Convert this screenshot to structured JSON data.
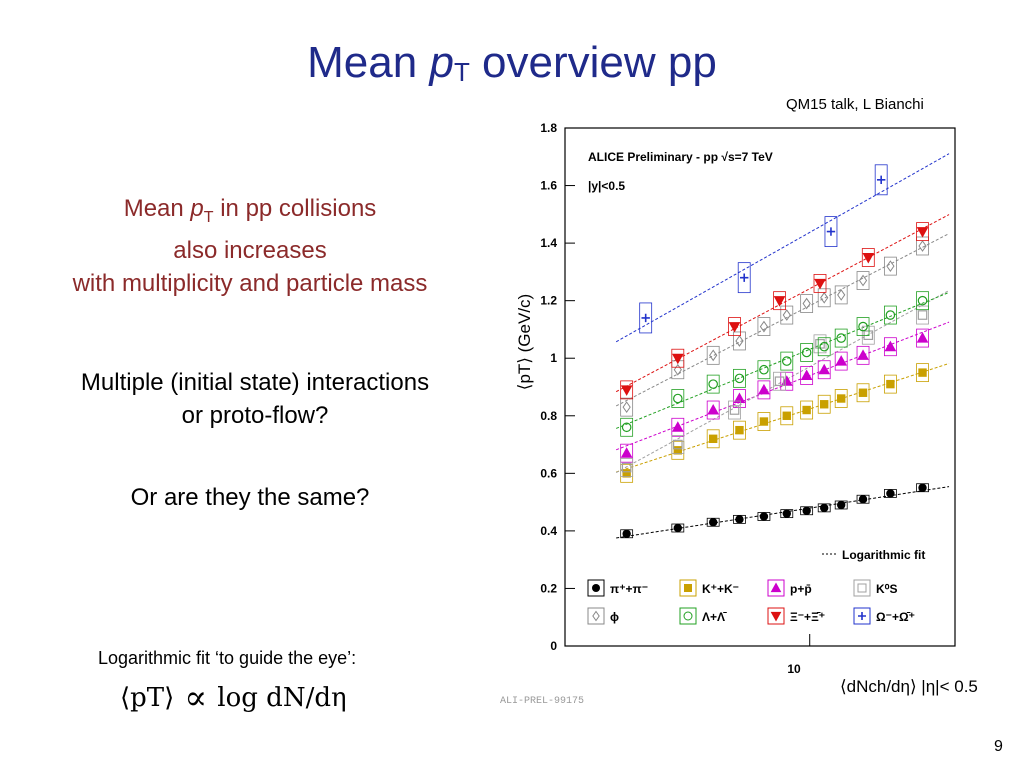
{
  "slide": {
    "title_pre": "Mean ",
    "title_p": "p",
    "title_sub": "T",
    "title_post": " overview pp",
    "citation": "QM15 talk, L Bianchi",
    "para1_line1_pre": "Mean ",
    "para1_p": "p",
    "para1_sub": "T",
    "para1_line1_post": " in pp collisions",
    "para1_line2": "also increases",
    "para1_line3": "with multiplicity and particle mass",
    "para2_line1": "Multiple (initial state) interactions",
    "para2_line2": "or proto-flow?",
    "para3": "Or are they the same?",
    "fit_note": "Logarithmic fit ‘to guide the eye’:",
    "formula_lhs": "⟨pT⟩",
    "formula_prop": "∝",
    "formula_rhs": "log  dN/dη",
    "page_number": "9"
  },
  "chart_data": {
    "type": "scatter",
    "title": "ALICE Preliminary - pp √s=7 TeV",
    "subtitle": "|y|<0.5",
    "xlabel": "⟨dNch/dη⟩ |η|< 0.5",
    "ylabel": "⟨pT⟩ (GeV/c)",
    "x_tick_label": "10",
    "y_ticks": [
      "0",
      "0.2",
      "0.4",
      "0.6",
      "0.8",
      "1",
      "1.2",
      "1.4",
      "1.6",
      "1.8"
    ],
    "ylim": [
      0,
      1.8
    ],
    "xlim": [
      2,
      26
    ],
    "fit_legend": "Logarithmic fit",
    "watermark": "ALI-PREL-99175",
    "x": [
      3,
      4.2,
      5.3,
      6.3,
      7.4,
      8.6,
      9.8,
      11.0,
      12.3,
      14.2,
      17.0,
      21.0
    ],
    "series": [
      {
        "name": "π++π-",
        "legend": "π⁺+π⁻",
        "color": "#000000",
        "marker": "circle",
        "x": [
          3,
          4.2,
          5.3,
          6.3,
          7.4,
          8.6,
          9.8,
          11.0,
          12.3,
          14.2,
          17.0,
          21.0
        ],
        "values": [
          0.39,
          0.41,
          0.43,
          0.44,
          0.45,
          0.46,
          0.47,
          0.48,
          0.49,
          0.51,
          0.53,
          0.55
        ]
      },
      {
        "name": "K++K-",
        "legend": "K⁺+K⁻",
        "color": "#c9a000",
        "marker": "square",
        "x": [
          3,
          4.2,
          5.3,
          6.3,
          7.4,
          8.6,
          9.8,
          11.0,
          12.3,
          14.2,
          17.0,
          21.0
        ],
        "values": [
          0.6,
          0.68,
          0.72,
          0.75,
          0.78,
          0.8,
          0.82,
          0.84,
          0.86,
          0.88,
          0.91,
          0.95
        ]
      },
      {
        "name": "p+pbar",
        "legend": "p+p̄",
        "color": "#cc00cc",
        "marker": "triangle",
        "x": [
          3,
          4.2,
          5.3,
          6.3,
          7.4,
          8.6,
          9.8,
          11.0,
          12.3,
          14.2,
          17.0,
          21.0
        ],
        "values": [
          0.67,
          0.76,
          0.82,
          0.86,
          0.89,
          0.92,
          0.94,
          0.96,
          0.99,
          1.01,
          1.04,
          1.07
        ]
      },
      {
        "name": "KS0",
        "legend": "K⁰S",
        "color": "#a0a0a0",
        "marker": "square-open",
        "x": [
          3,
          4.2,
          6.1,
          8.2,
          10.7,
          14.7,
          21.0
        ],
        "values": [
          0.62,
          0.7,
          0.82,
          0.92,
          1.05,
          1.08,
          1.15
        ]
      },
      {
        "name": "phi",
        "legend": "ϕ",
        "color": "#888888",
        "marker": "diamond",
        "x": [
          3,
          4.2,
          5.3,
          6.3,
          7.4,
          8.6,
          9.8,
          11.0,
          12.3,
          14.2,
          17.0,
          21.0
        ],
        "values": [
          0.83,
          0.96,
          1.01,
          1.06,
          1.11,
          1.15,
          1.19,
          1.21,
          1.22,
          1.27,
          1.32,
          1.39
        ]
      },
      {
        "name": "Lambda+Lambdabar",
        "legend": "Λ+Λ̄",
        "color": "#22a022",
        "marker": "circle-open",
        "x": [
          3,
          4.2,
          5.3,
          6.3,
          7.4,
          8.6,
          9.8,
          11.0,
          12.3,
          14.2,
          17.0,
          21.0
        ],
        "values": [
          0.76,
          0.86,
          0.91,
          0.93,
          0.96,
          0.99,
          1.02,
          1.04,
          1.07,
          1.11,
          1.15,
          1.2
        ]
      },
      {
        "name": "Xi+Xibar",
        "legend": "Ξ⁻+Ξ̄⁺",
        "color": "#dd1111",
        "marker": "triangle-down",
        "x": [
          3,
          4.2,
          6.1,
          8.2,
          10.7,
          14.7,
          21.0
        ],
        "values": [
          0.89,
          1.0,
          1.11,
          1.2,
          1.26,
          1.35,
          1.44
        ]
      },
      {
        "name": "Omega+Omegabar",
        "legend": "Ω⁻+Ω̄⁺",
        "color": "#2233cc",
        "marker": "cross-open",
        "x": [
          3.4,
          6.5,
          11.5,
          16.0
        ],
        "values": [
          1.14,
          1.28,
          1.44,
          1.62
        ]
      }
    ]
  }
}
